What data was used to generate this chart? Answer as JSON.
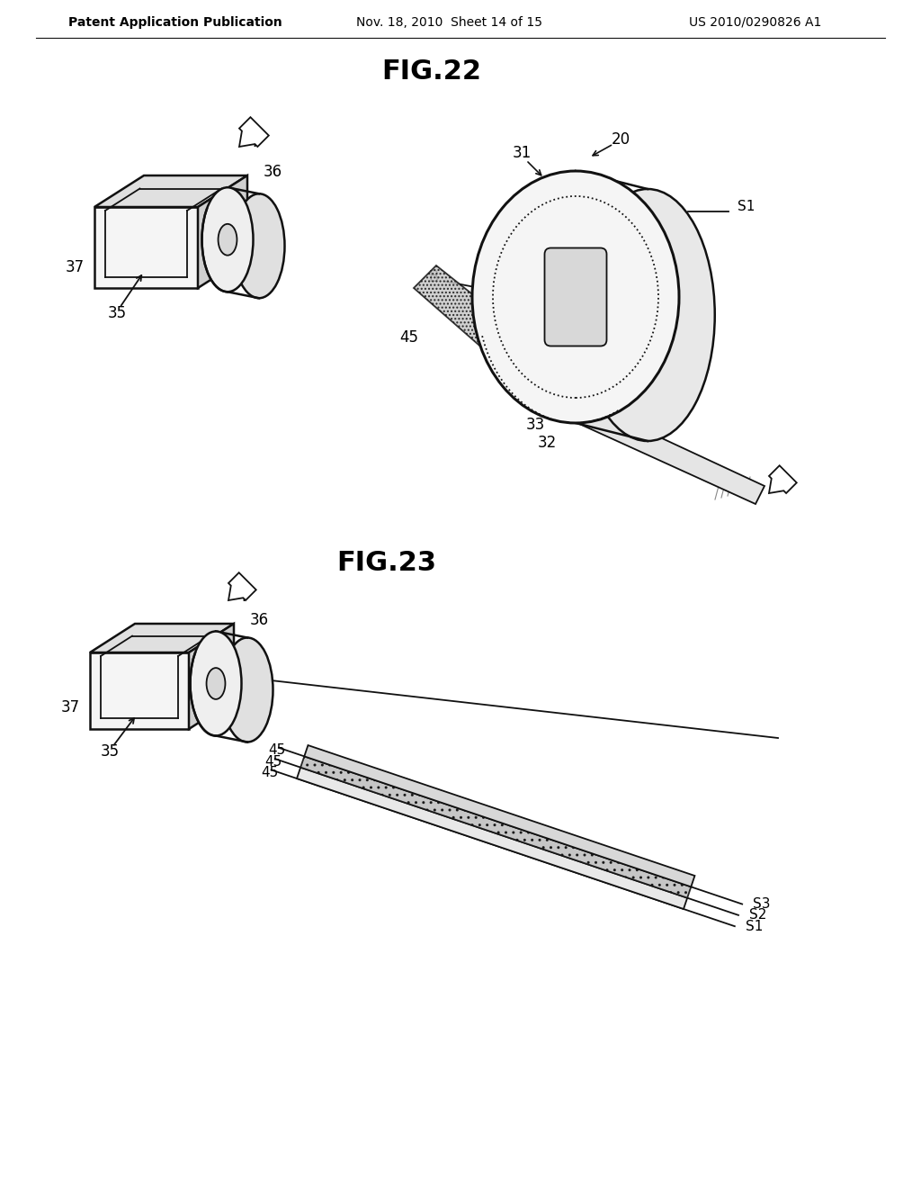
{
  "bg_color": "#ffffff",
  "text_color": "#000000",
  "header_left": "Patent Application Publication",
  "header_mid": "Nov. 18, 2010  Sheet 14 of 15",
  "header_right": "US 2010/0290826 A1",
  "fig22_title": "FIG.22",
  "fig23_title": "FIG.23"
}
